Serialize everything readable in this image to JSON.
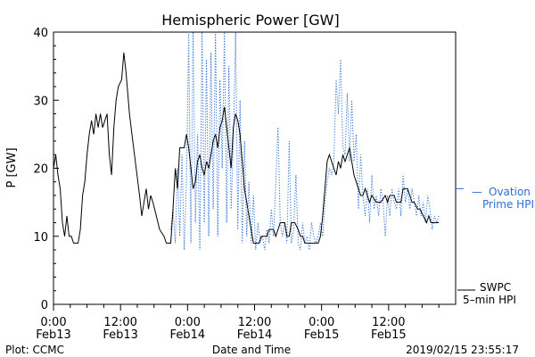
{
  "chart_data": {
    "type": "line",
    "title": "Hemispheric Power [GW]",
    "ylabel": "P [GW]",
    "xlabel": "Date and Time",
    "ylim": [
      0,
      40
    ],
    "xlim_hours": [
      0,
      72
    ],
    "yticks": [
      "0",
      "10",
      "20",
      "30",
      "40"
    ],
    "xticks": [
      {
        "hour": 0,
        "time": "0:00",
        "date": "Feb13"
      },
      {
        "hour": 12,
        "time": "12:00",
        "date": "Feb13"
      },
      {
        "hour": 24,
        "time": "0:00",
        "date": "Feb14"
      },
      {
        "hour": 36,
        "time": "12:00",
        "date": "Feb14"
      },
      {
        "hour": 48,
        "time": "0:00",
        "date": "Feb15"
      },
      {
        "hour": 60,
        "time": "12:00",
        "date": "Feb15"
      }
    ],
    "grid": false,
    "series": [
      {
        "name": "SWPC 5-min HPI",
        "color": "#000000",
        "style": "solid",
        "points": [
          [
            0,
            20
          ],
          [
            0.4,
            22
          ],
          [
            0.8,
            19
          ],
          [
            1.2,
            17
          ],
          [
            1.6,
            12
          ],
          [
            2,
            10
          ],
          [
            2.4,
            13
          ],
          [
            2.8,
            10
          ],
          [
            3.2,
            10
          ],
          [
            3.6,
            9
          ],
          [
            4.4,
            9
          ],
          [
            4.8,
            11
          ],
          [
            5.2,
            16
          ],
          [
            5.6,
            18
          ],
          [
            6,
            22
          ],
          [
            6.4,
            25
          ],
          [
            6.8,
            27
          ],
          [
            7.2,
            25
          ],
          [
            7.6,
            28
          ],
          [
            8,
            26
          ],
          [
            8.4,
            28
          ],
          [
            8.8,
            26
          ],
          [
            9.6,
            28
          ],
          [
            10,
            22
          ],
          [
            10.4,
            19
          ],
          [
            10.8,
            26
          ],
          [
            11.2,
            30
          ],
          [
            11.6,
            32
          ],
          [
            12.2,
            33
          ],
          [
            12.6,
            37
          ],
          [
            13,
            34
          ],
          [
            13.6,
            28
          ],
          [
            14.2,
            24
          ],
          [
            14.8,
            20
          ],
          [
            15.4,
            16
          ],
          [
            15.8,
            13
          ],
          [
            16.2,
            15
          ],
          [
            16.6,
            17
          ],
          [
            17,
            14
          ],
          [
            17.4,
            16
          ],
          [
            17.8,
            15
          ],
          [
            18.4,
            13
          ],
          [
            19,
            11
          ],
          [
            19.8,
            10
          ],
          [
            20.2,
            9
          ],
          [
            21,
            9
          ],
          [
            21.4,
            14
          ],
          [
            21.8,
            20
          ],
          [
            22.2,
            17
          ],
          [
            22.6,
            23
          ],
          [
            23.4,
            23
          ],
          [
            23.8,
            25
          ],
          [
            24.2,
            23
          ],
          [
            24.6,
            20
          ],
          [
            25,
            17
          ],
          [
            25.4,
            18
          ],
          [
            25.8,
            21
          ],
          [
            26.2,
            22
          ],
          [
            26.6,
            20
          ],
          [
            27,
            19
          ],
          [
            27.4,
            21
          ],
          [
            27.8,
            20
          ],
          [
            28.2,
            22
          ],
          [
            28.6,
            24
          ],
          [
            29,
            25
          ],
          [
            29.4,
            23
          ],
          [
            29.8,
            26
          ],
          [
            30.2,
            27
          ],
          [
            30.6,
            29
          ],
          [
            31,
            26
          ],
          [
            31.4,
            23
          ],
          [
            31.8,
            20
          ],
          [
            32.2,
            26
          ],
          [
            32.6,
            28
          ],
          [
            33,
            27
          ],
          [
            33.4,
            25
          ],
          [
            33.8,
            21
          ],
          [
            34.2,
            17
          ],
          [
            34.6,
            15
          ],
          [
            35,
            13
          ],
          [
            35.4,
            11
          ],
          [
            35.8,
            9
          ],
          [
            36.8,
            9
          ],
          [
            37.2,
            10
          ],
          [
            38.2,
            10
          ],
          [
            38.6,
            11
          ],
          [
            39.4,
            11
          ],
          [
            39.8,
            10
          ],
          [
            40.2,
            11
          ],
          [
            40.6,
            12
          ],
          [
            41.4,
            12
          ],
          [
            41.8,
            10
          ],
          [
            42.2,
            10
          ],
          [
            42.6,
            12
          ],
          [
            43.2,
            12
          ],
          [
            43.8,
            11
          ],
          [
            44.2,
            10
          ],
          [
            44.6,
            10
          ],
          [
            45,
            9
          ],
          [
            47.4,
            9
          ],
          [
            47.8,
            10
          ],
          [
            48.2,
            13
          ],
          [
            48.6,
            17
          ],
          [
            49,
            21
          ],
          [
            49.4,
            22
          ],
          [
            49.8,
            21
          ],
          [
            50.2,
            20
          ],
          [
            50.6,
            19
          ],
          [
            51,
            21
          ],
          [
            51.4,
            20
          ],
          [
            51.8,
            22
          ],
          [
            52.2,
            21
          ],
          [
            52.6,
            22
          ],
          [
            53,
            23
          ],
          [
            53.4,
            21
          ],
          [
            53.8,
            19
          ],
          [
            54.2,
            18
          ],
          [
            54.6,
            17
          ],
          [
            55,
            16
          ],
          [
            55.4,
            16
          ],
          [
            55.8,
            17
          ],
          [
            56.2,
            16
          ],
          [
            56.6,
            15
          ],
          [
            57,
            16
          ],
          [
            57.8,
            15
          ],
          [
            58.6,
            15
          ],
          [
            59.4,
            16
          ],
          [
            59.8,
            15
          ],
          [
            60.2,
            16
          ],
          [
            61,
            16
          ],
          [
            61.4,
            15
          ],
          [
            62.2,
            15
          ],
          [
            62.6,
            17
          ],
          [
            63.4,
            17
          ],
          [
            63.8,
            16
          ],
          [
            64.2,
            15
          ],
          [
            64.6,
            15
          ],
          [
            65.2,
            14
          ],
          [
            65.6,
            14
          ],
          [
            66.2,
            13
          ],
          [
            66.8,
            12
          ],
          [
            67.2,
            13
          ],
          [
            67.6,
            12
          ],
          [
            68,
            12
          ],
          [
            68.4,
            12
          ],
          [
            69,
            12
          ]
        ]
      },
      {
        "name": "Ovation Prime HPI",
        "color": "#2b6fd6",
        "style": "dotted",
        "points": [
          [
            21,
            11
          ],
          [
            21.4,
            14
          ],
          [
            21.8,
            9
          ],
          [
            22.2,
            20
          ],
          [
            22.6,
            10
          ],
          [
            23,
            22
          ],
          [
            23.4,
            8
          ],
          [
            23.8,
            18
          ],
          [
            24.2,
            41
          ],
          [
            24.6,
            9
          ],
          [
            25,
            40
          ],
          [
            25.4,
            12
          ],
          [
            25.8,
            25
          ],
          [
            26.2,
            8
          ],
          [
            26.6,
            40
          ],
          [
            27,
            12
          ],
          [
            27.4,
            36
          ],
          [
            27.8,
            10
          ],
          [
            28.2,
            37
          ],
          [
            28.6,
            14
          ],
          [
            29,
            40
          ],
          [
            29.4,
            10
          ],
          [
            29.8,
            33
          ],
          [
            30.2,
            20
          ],
          [
            30.6,
            40
          ],
          [
            31,
            12
          ],
          [
            31.4,
            35
          ],
          [
            31.8,
            14
          ],
          [
            32.2,
            24
          ],
          [
            32.6,
            40
          ],
          [
            33,
            11
          ],
          [
            33.4,
            30
          ],
          [
            33.8,
            9
          ],
          [
            34.2,
            24
          ],
          [
            34.6,
            10
          ],
          [
            35,
            18
          ],
          [
            35.4,
            9
          ],
          [
            35.8,
            16
          ],
          [
            36.2,
            8
          ],
          [
            36.6,
            12
          ],
          [
            37,
            9
          ],
          [
            37.4,
            10
          ],
          [
            37.8,
            8
          ],
          [
            38.2,
            11
          ],
          [
            38.6,
            9
          ],
          [
            39,
            14
          ],
          [
            39.4,
            10
          ],
          [
            40.2,
            26
          ],
          [
            40.6,
            12
          ],
          [
            41,
            10
          ],
          [
            41.4,
            12
          ],
          [
            41.8,
            9
          ],
          [
            42.2,
            24
          ],
          [
            42.6,
            9
          ],
          [
            43,
            11
          ],
          [
            43.4,
            19
          ],
          [
            43.8,
            9
          ],
          [
            44.2,
            8
          ],
          [
            44.6,
            12
          ],
          [
            45,
            9
          ],
          [
            45.4,
            10
          ],
          [
            45.8,
            8
          ],
          [
            46.2,
            12
          ],
          [
            46.6,
            10
          ],
          [
            47,
            9
          ],
          [
            47.4,
            10
          ],
          [
            47.8,
            12
          ],
          [
            48.2,
            10
          ],
          [
            48.6,
            15
          ],
          [
            49,
            18
          ],
          [
            49.4,
            20
          ],
          [
            49.8,
            19
          ],
          [
            50.2,
            21
          ],
          [
            50.6,
            33
          ],
          [
            51,
            28
          ],
          [
            51.4,
            36
          ],
          [
            51.8,
            23
          ],
          [
            52.2,
            22
          ],
          [
            52.6,
            31
          ],
          [
            53,
            21
          ],
          [
            53.4,
            30
          ],
          [
            53.8,
            21
          ],
          [
            54.2,
            25
          ],
          [
            54.6,
            14
          ],
          [
            55,
            22
          ],
          [
            55.4,
            16
          ],
          [
            55.8,
            13
          ],
          [
            56.2,
            17
          ],
          [
            56.6,
            12
          ],
          [
            57,
            19
          ],
          [
            57.4,
            14
          ],
          [
            57.8,
            16
          ],
          [
            58.2,
            13
          ],
          [
            58.6,
            17
          ],
          [
            59,
            15
          ],
          [
            59.4,
            10
          ],
          [
            59.8,
            16
          ],
          [
            60.2,
            13
          ],
          [
            60.6,
            17
          ],
          [
            61,
            15
          ],
          [
            61.4,
            14
          ],
          [
            61.8,
            17
          ],
          [
            62.2,
            13
          ],
          [
            62.6,
            19
          ],
          [
            63,
            15
          ],
          [
            63.4,
            17
          ],
          [
            63.8,
            14
          ],
          [
            64.2,
            17
          ],
          [
            64.6,
            15
          ],
          [
            65,
            13
          ],
          [
            65.4,
            16
          ],
          [
            65.8,
            13
          ],
          [
            66.2,
            15
          ],
          [
            66.6,
            12
          ],
          [
            67,
            16
          ],
          [
            67.4,
            14
          ],
          [
            67.8,
            11
          ],
          [
            68.2,
            13
          ],
          [
            68.6,
            12
          ],
          [
            69,
            13
          ]
        ]
      }
    ],
    "ovation_marker_value": 17
  },
  "labels": {
    "ovation_line1": "Ovation",
    "ovation_line2": "Prime HPI",
    "ovation_dash": "—",
    "swpc_line1": "SWPC",
    "swpc_line2": "5–min HPI",
    "plot_credit": "Plot: CCMC",
    "timestamp": "2019/02/15 23:55:17"
  },
  "colors": {
    "axis": "#000000",
    "ovation": "#2b6fd6",
    "swpc": "#000000"
  }
}
